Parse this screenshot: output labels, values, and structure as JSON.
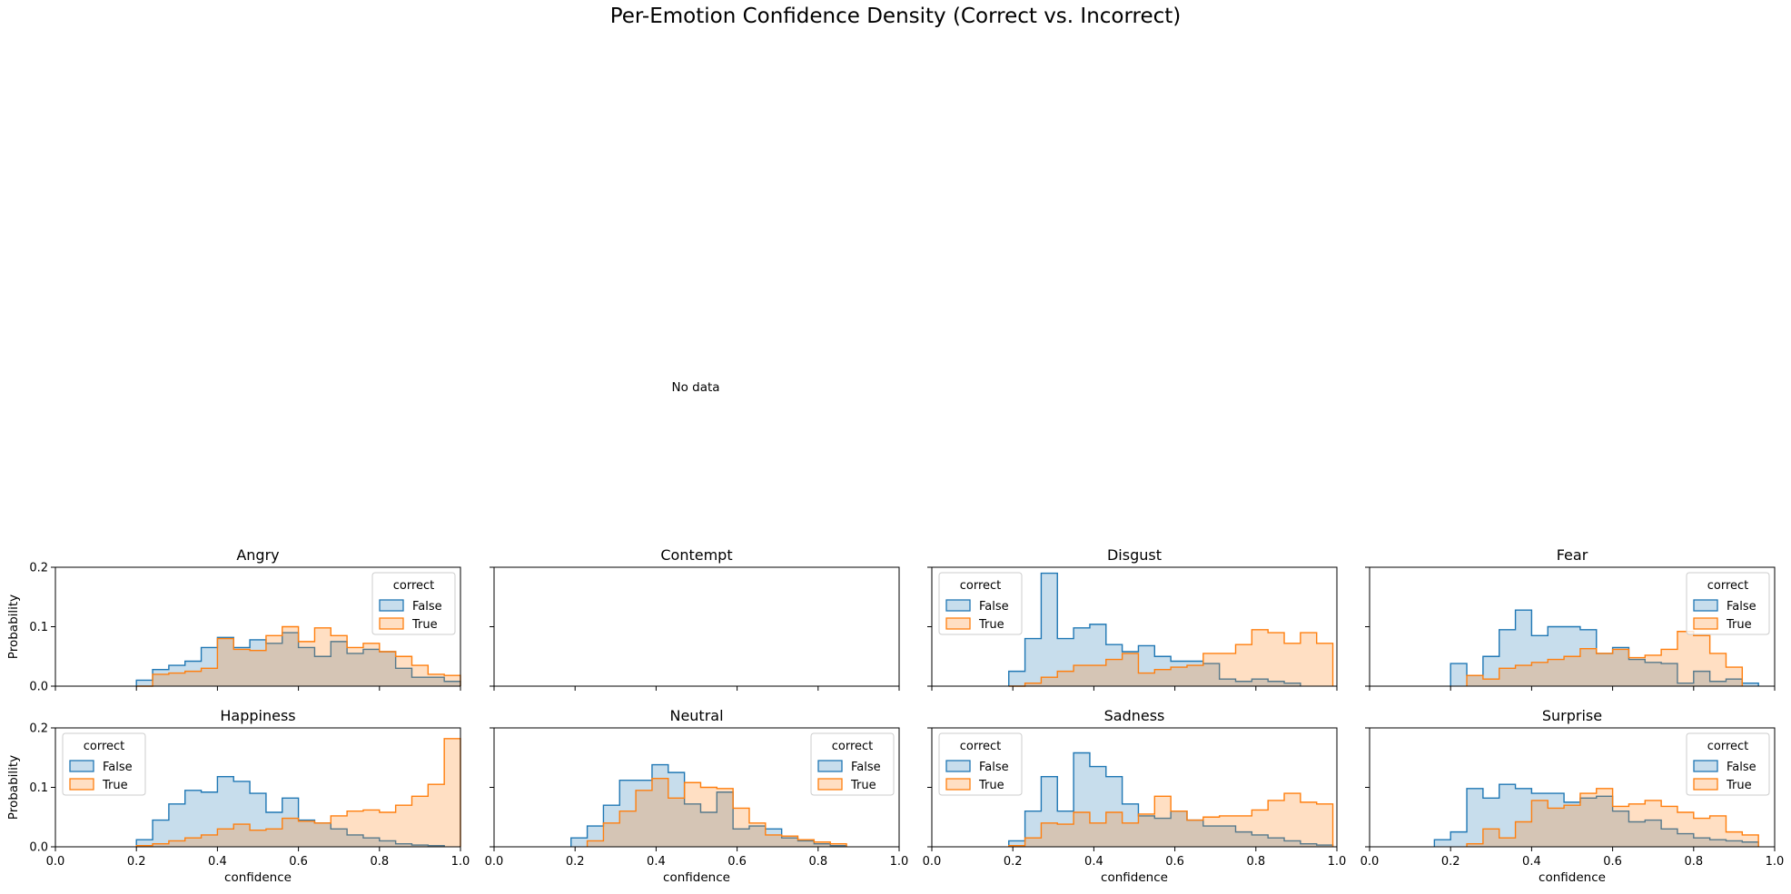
{
  "figure": {
    "suptitle": "Per-Emotion Confidence Density (Correct vs. Incorrect)",
    "no_data_text": "No data"
  },
  "colors": {
    "false_line": "#1f77b4",
    "false_fill": "#1f77b4",
    "true_line": "#ff7f0e",
    "true_fill": "#ff7f0e"
  },
  "chart_data": [
    {
      "type": "histogram",
      "title": "Angry",
      "xlabel": "",
      "ylabel": "Probability",
      "xlim": [
        0,
        1
      ],
      "ylim": [
        0,
        0.2
      ],
      "xticks": [
        "0.0",
        "0.2",
        "0.4",
        "0.6",
        "0.8",
        "1.0"
      ],
      "yticks": [
        "0.0",
        "0.1",
        "0.2"
      ],
      "show_xticklabels": false,
      "show_yticklabels": true,
      "legend": {
        "title": "correct",
        "placement": "upper right",
        "entries": [
          "False",
          "True"
        ]
      },
      "series": [
        {
          "name": "False",
          "x": [
            0.2,
            0.24,
            0.28,
            0.32,
            0.36,
            0.4,
            0.44,
            0.48,
            0.52,
            0.56,
            0.6,
            0.64,
            0.68,
            0.72,
            0.76,
            0.8,
            0.84,
            0.88,
            0.92,
            0.96
          ],
          "values": [
            0.01,
            0.028,
            0.035,
            0.042,
            0.065,
            0.082,
            0.065,
            0.078,
            0.072,
            0.09,
            0.065,
            0.05,
            0.075,
            0.055,
            0.062,
            0.058,
            0.03,
            0.015,
            0.015,
            0.008
          ]
        },
        {
          "name": "True",
          "x": [
            0.2,
            0.24,
            0.28,
            0.32,
            0.36,
            0.4,
            0.44,
            0.48,
            0.52,
            0.56,
            0.6,
            0.64,
            0.68,
            0.72,
            0.76,
            0.8,
            0.84,
            0.88,
            0.92,
            0.96
          ],
          "values": [
            0.0,
            0.02,
            0.022,
            0.025,
            0.03,
            0.08,
            0.062,
            0.06,
            0.085,
            0.1,
            0.075,
            0.098,
            0.085,
            0.065,
            0.072,
            0.058,
            0.05,
            0.035,
            0.02,
            0.018
          ]
        }
      ]
    },
    {
      "type": "histogram",
      "title": "Contempt",
      "xlabel": "",
      "ylabel": "",
      "xlim": [
        0,
        1
      ],
      "ylim": [
        0,
        0.2
      ],
      "xticks": [
        "0.0",
        "0.2",
        "0.4",
        "0.6",
        "0.8",
        "1.0"
      ],
      "yticks": [
        "0.0",
        "0.1",
        "0.2"
      ],
      "show_xticklabels": false,
      "show_yticklabels": false,
      "legend": null,
      "series": []
    },
    {
      "type": "histogram",
      "title": "Disgust",
      "xlabel": "",
      "ylabel": "",
      "xlim": [
        0,
        1
      ],
      "ylim": [
        0,
        0.2
      ],
      "xticks": [
        "0.0",
        "0.2",
        "0.4",
        "0.6",
        "0.8",
        "1.0"
      ],
      "yticks": [
        "0.0",
        "0.1",
        "0.2"
      ],
      "show_xticklabels": false,
      "show_yticklabels": false,
      "legend": {
        "title": "correct",
        "placement": "upper left",
        "entries": [
          "False",
          "True"
        ]
      },
      "series": [
        {
          "name": "False",
          "x": [
            0.19,
            0.23,
            0.27,
            0.31,
            0.35,
            0.39,
            0.43,
            0.47,
            0.51,
            0.55,
            0.59,
            0.63,
            0.67,
            0.71,
            0.75,
            0.79,
            0.83,
            0.87
          ],
          "values": [
            0.025,
            0.08,
            0.19,
            0.08,
            0.098,
            0.104,
            0.07,
            0.058,
            0.068,
            0.05,
            0.042,
            0.042,
            0.038,
            0.012,
            0.008,
            0.012,
            0.008,
            0.005
          ]
        },
        {
          "name": "True",
          "x": [
            0.19,
            0.23,
            0.27,
            0.31,
            0.35,
            0.39,
            0.43,
            0.47,
            0.51,
            0.55,
            0.59,
            0.63,
            0.67,
            0.71,
            0.75,
            0.79,
            0.83,
            0.87,
            0.91,
            0.95
          ],
          "values": [
            0.0,
            0.005,
            0.015,
            0.025,
            0.035,
            0.035,
            0.045,
            0.055,
            0.022,
            0.028,
            0.032,
            0.035,
            0.055,
            0.055,
            0.07,
            0.095,
            0.09,
            0.072,
            0.09,
            0.072
          ]
        }
      ]
    },
    {
      "type": "histogram",
      "title": "Fear",
      "xlabel": "",
      "ylabel": "",
      "xlim": [
        0,
        1
      ],
      "ylim": [
        0,
        0.2
      ],
      "xticks": [
        "0.0",
        "0.2",
        "0.4",
        "0.6",
        "0.8",
        "1.0"
      ],
      "yticks": [
        "0.0",
        "0.1",
        "0.2"
      ],
      "show_xticklabels": false,
      "show_yticklabels": false,
      "legend": {
        "title": "correct",
        "placement": "upper right",
        "entries": [
          "False",
          "True"
        ]
      },
      "series": [
        {
          "name": "False",
          "x": [
            0.2,
            0.24,
            0.28,
            0.32,
            0.36,
            0.4,
            0.44,
            0.48,
            0.52,
            0.56,
            0.6,
            0.64,
            0.68,
            0.72,
            0.76,
            0.8,
            0.84,
            0.88,
            0.92
          ],
          "values": [
            0.038,
            0.018,
            0.05,
            0.095,
            0.128,
            0.085,
            0.1,
            0.1,
            0.095,
            0.055,
            0.065,
            0.045,
            0.04,
            0.038,
            0.005,
            0.025,
            0.008,
            0.012,
            0.005
          ]
        },
        {
          "name": "True",
          "x": [
            0.24,
            0.28,
            0.32,
            0.36,
            0.4,
            0.44,
            0.48,
            0.52,
            0.56,
            0.6,
            0.64,
            0.68,
            0.72,
            0.76,
            0.8,
            0.84,
            0.88
          ],
          "values": [
            0.018,
            0.012,
            0.03,
            0.035,
            0.04,
            0.045,
            0.05,
            0.063,
            0.055,
            0.062,
            0.048,
            0.052,
            0.062,
            0.092,
            0.085,
            0.055,
            0.032
          ]
        }
      ]
    },
    {
      "type": "histogram",
      "title": "Happiness",
      "xlabel": "confidence",
      "ylabel": "Probability",
      "xlim": [
        0,
        1
      ],
      "ylim": [
        0,
        0.2
      ],
      "xticks": [
        "0.0",
        "0.2",
        "0.4",
        "0.6",
        "0.8",
        "1.0"
      ],
      "yticks": [
        "0.0",
        "0.1",
        "0.2"
      ],
      "show_xticklabels": true,
      "show_yticklabels": true,
      "legend": {
        "title": "correct",
        "placement": "upper left",
        "entries": [
          "False",
          "True"
        ]
      },
      "series": [
        {
          "name": "False",
          "x": [
            0.2,
            0.24,
            0.28,
            0.32,
            0.36,
            0.4,
            0.44,
            0.48,
            0.52,
            0.56,
            0.6,
            0.64,
            0.68,
            0.72,
            0.76,
            0.8,
            0.84,
            0.88,
            0.92
          ],
          "values": [
            0.012,
            0.045,
            0.072,
            0.095,
            0.092,
            0.118,
            0.11,
            0.09,
            0.058,
            0.082,
            0.045,
            0.04,
            0.03,
            0.02,
            0.015,
            0.01,
            0.005,
            0.003,
            0.002
          ]
        },
        {
          "name": "True",
          "x": [
            0.2,
            0.24,
            0.28,
            0.32,
            0.36,
            0.4,
            0.44,
            0.48,
            0.52,
            0.56,
            0.6,
            0.64,
            0.68,
            0.72,
            0.76,
            0.8,
            0.84,
            0.88,
            0.92,
            0.96
          ],
          "values": [
            0.002,
            0.005,
            0.01,
            0.015,
            0.02,
            0.03,
            0.038,
            0.028,
            0.03,
            0.048,
            0.043,
            0.04,
            0.052,
            0.06,
            0.062,
            0.058,
            0.07,
            0.085,
            0.105,
            0.182
          ]
        }
      ]
    },
    {
      "type": "histogram",
      "title": "Neutral",
      "xlabel": "confidence",
      "ylabel": "",
      "xlim": [
        0,
        1
      ],
      "ylim": [
        0,
        0.2
      ],
      "xticks": [
        "0.0",
        "0.2",
        "0.4",
        "0.6",
        "0.8",
        "1.0"
      ],
      "yticks": [
        "0.0",
        "0.1",
        "0.2"
      ],
      "show_xticklabels": true,
      "show_yticklabels": false,
      "legend": {
        "title": "correct",
        "placement": "upper right",
        "entries": [
          "False",
          "True"
        ]
      },
      "series": [
        {
          "name": "False",
          "x": [
            0.19,
            0.23,
            0.27,
            0.31,
            0.35,
            0.39,
            0.43,
            0.47,
            0.51,
            0.55,
            0.59,
            0.63,
            0.67,
            0.71,
            0.75,
            0.79,
            0.83
          ],
          "values": [
            0.015,
            0.035,
            0.07,
            0.112,
            0.112,
            0.138,
            0.125,
            0.072,
            0.058,
            0.092,
            0.03,
            0.035,
            0.03,
            0.015,
            0.01,
            0.005,
            0.002
          ]
        },
        {
          "name": "True",
          "x": [
            0.23,
            0.27,
            0.31,
            0.35,
            0.39,
            0.43,
            0.47,
            0.51,
            0.55,
            0.59,
            0.63,
            0.67,
            0.71,
            0.75,
            0.79,
            0.83
          ],
          "values": [
            0.01,
            0.04,
            0.06,
            0.095,
            0.115,
            0.082,
            0.108,
            0.1,
            0.098,
            0.065,
            0.04,
            0.02,
            0.018,
            0.012,
            0.008,
            0.005
          ]
        }
      ]
    },
    {
      "type": "histogram",
      "title": "Sadness",
      "xlabel": "confidence",
      "ylabel": "",
      "xlim": [
        0,
        1
      ],
      "ylim": [
        0,
        0.2
      ],
      "xticks": [
        "0.0",
        "0.2",
        "0.4",
        "0.6",
        "0.8",
        "1.0"
      ],
      "yticks": [
        "0.0",
        "0.1",
        "0.2"
      ],
      "show_xticklabels": true,
      "show_yticklabels": false,
      "legend": {
        "title": "correct",
        "placement": "upper left",
        "entries": [
          "False",
          "True"
        ]
      },
      "series": [
        {
          "name": "False",
          "x": [
            0.19,
            0.23,
            0.27,
            0.31,
            0.35,
            0.39,
            0.43,
            0.47,
            0.51,
            0.55,
            0.59,
            0.63,
            0.67,
            0.71,
            0.75,
            0.79,
            0.83,
            0.87,
            0.91,
            0.95
          ],
          "values": [
            0.01,
            0.06,
            0.118,
            0.06,
            0.158,
            0.135,
            0.118,
            0.072,
            0.052,
            0.048,
            0.06,
            0.045,
            0.035,
            0.035,
            0.025,
            0.02,
            0.015,
            0.01,
            0.005,
            0.003
          ]
        },
        {
          "name": "True",
          "x": [
            0.19,
            0.23,
            0.27,
            0.31,
            0.35,
            0.39,
            0.43,
            0.47,
            0.51,
            0.55,
            0.59,
            0.63,
            0.67,
            0.71,
            0.75,
            0.79,
            0.83,
            0.87,
            0.91,
            0.95
          ],
          "values": [
            0.002,
            0.015,
            0.04,
            0.038,
            0.058,
            0.04,
            0.058,
            0.04,
            0.055,
            0.085,
            0.06,
            0.045,
            0.05,
            0.052,
            0.052,
            0.062,
            0.078,
            0.09,
            0.075,
            0.072
          ]
        }
      ]
    },
    {
      "type": "histogram",
      "title": "Surprise",
      "xlabel": "confidence",
      "ylabel": "",
      "xlim": [
        0,
        1
      ],
      "ylim": [
        0,
        0.2
      ],
      "xticks": [
        "0.0",
        "0.2",
        "0.4",
        "0.6",
        "0.8",
        "1.0"
      ],
      "yticks": [
        "0.0",
        "0.1",
        "0.2"
      ],
      "show_xticklabels": true,
      "show_yticklabels": false,
      "legend": {
        "title": "correct",
        "placement": "upper right",
        "entries": [
          "False",
          "True"
        ]
      },
      "series": [
        {
          "name": "False",
          "x": [
            0.16,
            0.2,
            0.24,
            0.28,
            0.32,
            0.36,
            0.4,
            0.44,
            0.48,
            0.52,
            0.56,
            0.6,
            0.64,
            0.68,
            0.72,
            0.76,
            0.8,
            0.84,
            0.88,
            0.92
          ],
          "values": [
            0.012,
            0.025,
            0.098,
            0.082,
            0.105,
            0.098,
            0.09,
            0.09,
            0.075,
            0.082,
            0.085,
            0.06,
            0.042,
            0.045,
            0.03,
            0.022,
            0.015,
            0.012,
            0.01,
            0.008
          ]
        },
        {
          "name": "True",
          "x": [
            0.24,
            0.28,
            0.32,
            0.36,
            0.4,
            0.44,
            0.48,
            0.52,
            0.56,
            0.6,
            0.64,
            0.68,
            0.72,
            0.76,
            0.8,
            0.84,
            0.88,
            0.92
          ],
          "values": [
            0.005,
            0.03,
            0.015,
            0.042,
            0.078,
            0.065,
            0.07,
            0.09,
            0.098,
            0.068,
            0.072,
            0.078,
            0.068,
            0.058,
            0.048,
            0.052,
            0.025,
            0.02
          ]
        }
      ]
    }
  ]
}
